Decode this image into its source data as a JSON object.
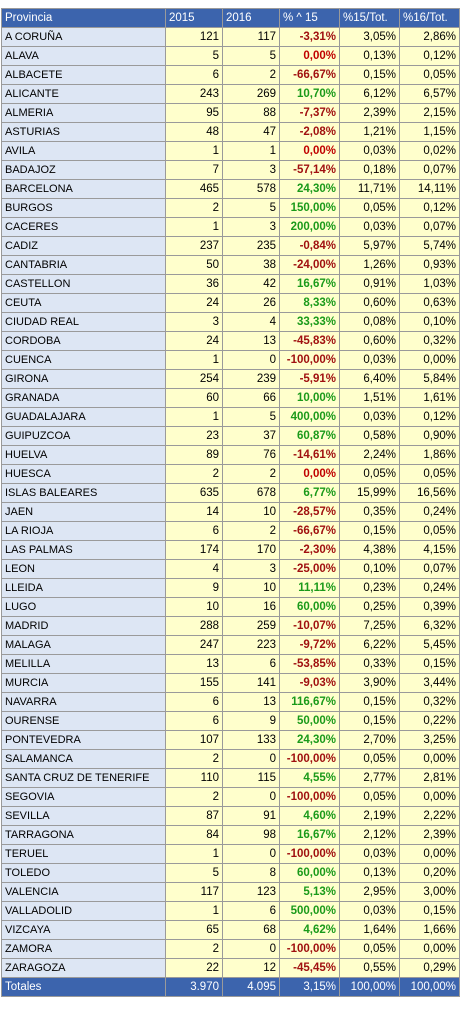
{
  "headers": [
    "Provincia",
    "2015",
    "2016",
    "% ^ 15",
    "%15/Tot.",
    "%16/Tot."
  ],
  "rows": [
    [
      "A CORUÑA",
      "121",
      "117",
      "-3,31%",
      "3,05%",
      "2,86%"
    ],
    [
      "ALAVA",
      "5",
      "5",
      "0,00%",
      "0,13%",
      "0,12%"
    ],
    [
      "ALBACETE",
      "6",
      "2",
      "-66,67%",
      "0,15%",
      "0,05%"
    ],
    [
      "ALICANTE",
      "243",
      "269",
      "10,70%",
      "6,12%",
      "6,57%"
    ],
    [
      "ALMERIA",
      "95",
      "88",
      "-7,37%",
      "2,39%",
      "2,15%"
    ],
    [
      "ASTURIAS",
      "48",
      "47",
      "-2,08%",
      "1,21%",
      "1,15%"
    ],
    [
      "AVILA",
      "1",
      "1",
      "0,00%",
      "0,03%",
      "0,02%"
    ],
    [
      "BADAJOZ",
      "7",
      "3",
      "-57,14%",
      "0,18%",
      "0,07%"
    ],
    [
      "BARCELONA",
      "465",
      "578",
      "24,30%",
      "11,71%",
      "14,11%"
    ],
    [
      "BURGOS",
      "2",
      "5",
      "150,00%",
      "0,05%",
      "0,12%"
    ],
    [
      "CACERES",
      "1",
      "3",
      "200,00%",
      "0,03%",
      "0,07%"
    ],
    [
      "CADIZ",
      "237",
      "235",
      "-0,84%",
      "5,97%",
      "5,74%"
    ],
    [
      "CANTABRIA",
      "50",
      "38",
      "-24,00%",
      "1,26%",
      "0,93%"
    ],
    [
      "CASTELLON",
      "36",
      "42",
      "16,67%",
      "0,91%",
      "1,03%"
    ],
    [
      "CEUTA",
      "24",
      "26",
      "8,33%",
      "0,60%",
      "0,63%"
    ],
    [
      "CIUDAD REAL",
      "3",
      "4",
      "33,33%",
      "0,08%",
      "0,10%"
    ],
    [
      "CORDOBA",
      "24",
      "13",
      "-45,83%",
      "0,60%",
      "0,32%"
    ],
    [
      "CUENCA",
      "1",
      "0",
      "-100,00%",
      "0,03%",
      "0,00%"
    ],
    [
      "GIRONA",
      "254",
      "239",
      "-5,91%",
      "6,40%",
      "5,84%"
    ],
    [
      "GRANADA",
      "60",
      "66",
      "10,00%",
      "1,51%",
      "1,61%"
    ],
    [
      "GUADALAJARA",
      "1",
      "5",
      "400,00%",
      "0,03%",
      "0,12%"
    ],
    [
      "GUIPUZCOA",
      "23",
      "37",
      "60,87%",
      "0,58%",
      "0,90%"
    ],
    [
      "HUELVA",
      "89",
      "76",
      "-14,61%",
      "2,24%",
      "1,86%"
    ],
    [
      "HUESCA",
      "2",
      "2",
      "0,00%",
      "0,05%",
      "0,05%"
    ],
    [
      "ISLAS BALEARES",
      "635",
      "678",
      "6,77%",
      "15,99%",
      "16,56%"
    ],
    [
      "JAEN",
      "14",
      "10",
      "-28,57%",
      "0,35%",
      "0,24%"
    ],
    [
      "LA RIOJA",
      "6",
      "2",
      "-66,67%",
      "0,15%",
      "0,05%"
    ],
    [
      "LAS PALMAS",
      "174",
      "170",
      "-2,30%",
      "4,38%",
      "4,15%"
    ],
    [
      "LEON",
      "4",
      "3",
      "-25,00%",
      "0,10%",
      "0,07%"
    ],
    [
      "LLEIDA",
      "9",
      "10",
      "11,11%",
      "0,23%",
      "0,24%"
    ],
    [
      "LUGO",
      "10",
      "16",
      "60,00%",
      "0,25%",
      "0,39%"
    ],
    [
      "MADRID",
      "288",
      "259",
      "-10,07%",
      "7,25%",
      "6,32%"
    ],
    [
      "MALAGA",
      "247",
      "223",
      "-9,72%",
      "6,22%",
      "5,45%"
    ],
    [
      "MELILLA",
      "13",
      "6",
      "-53,85%",
      "0,33%",
      "0,15%"
    ],
    [
      "MURCIA",
      "155",
      "141",
      "-9,03%",
      "3,90%",
      "3,44%"
    ],
    [
      "NAVARRA",
      "6",
      "13",
      "116,67%",
      "0,15%",
      "0,32%"
    ],
    [
      "OURENSE",
      "6",
      "9",
      "50,00%",
      "0,15%",
      "0,22%"
    ],
    [
      "PONTEVEDRA",
      "107",
      "133",
      "24,30%",
      "2,70%",
      "3,25%"
    ],
    [
      "SALAMANCA",
      "2",
      "0",
      "-100,00%",
      "0,05%",
      "0,00%"
    ],
    [
      "SANTA CRUZ DE TENERIFE",
      "110",
      "115",
      "4,55%",
      "2,77%",
      "2,81%"
    ],
    [
      "SEGOVIA",
      "2",
      "0",
      "-100,00%",
      "0,05%",
      "0,00%"
    ],
    [
      "SEVILLA",
      "87",
      "91",
      "4,60%",
      "2,19%",
      "2,22%"
    ],
    [
      "TARRAGONA",
      "84",
      "98",
      "16,67%",
      "2,12%",
      "2,39%"
    ],
    [
      "TERUEL",
      "1",
      "0",
      "-100,00%",
      "0,03%",
      "0,00%"
    ],
    [
      "TOLEDO",
      "5",
      "8",
      "60,00%",
      "0,13%",
      "0,20%"
    ],
    [
      "VALENCIA",
      "117",
      "123",
      "5,13%",
      "2,95%",
      "3,00%"
    ],
    [
      "VALLADOLID",
      "1",
      "6",
      "500,00%",
      "0,03%",
      "0,15%"
    ],
    [
      "VIZCAYA",
      "65",
      "68",
      "4,62%",
      "1,64%",
      "1,66%"
    ],
    [
      "ZAMORA",
      "2",
      "0",
      "-100,00%",
      "0,05%",
      "0,00%"
    ],
    [
      "ZARAGOZA",
      "22",
      "12",
      "-45,45%",
      "0,55%",
      "0,29%"
    ]
  ],
  "totals": [
    "Totales",
    "3.970",
    "4.095",
    "3,15%",
    "100,00%",
    "100,00%"
  ],
  "colors": {
    "header_bg": "#3c64ad",
    "province_bg": "#dde6f4",
    "number_bg": "#ffffcc",
    "positive": "#1a9a1a",
    "negative": "#a01010"
  }
}
